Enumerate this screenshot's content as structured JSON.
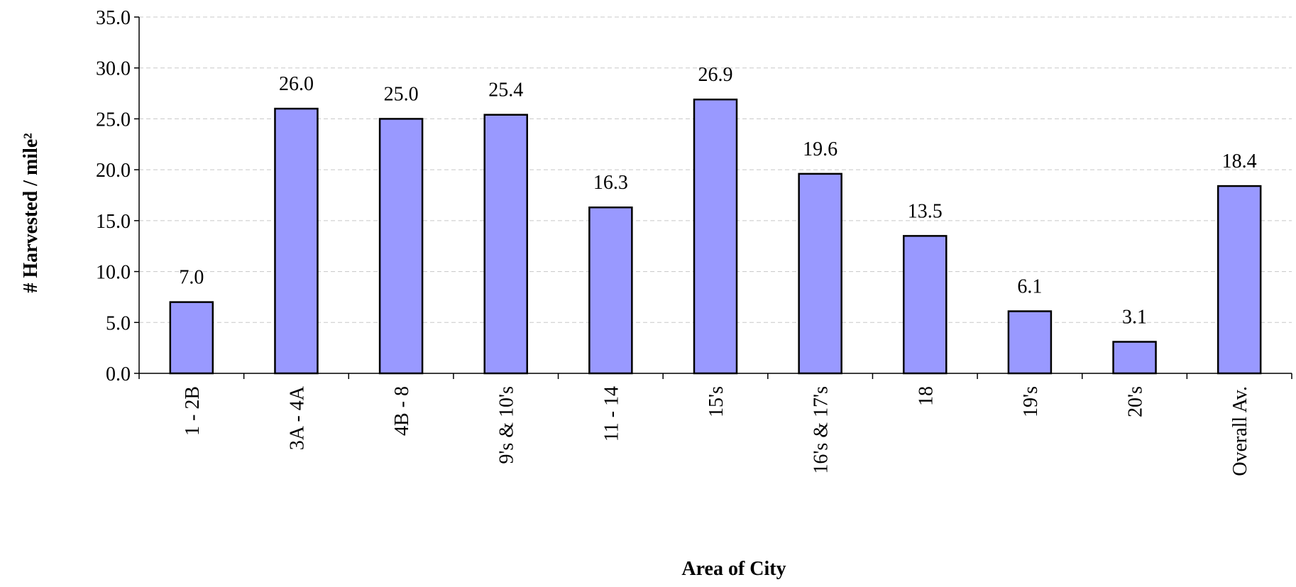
{
  "chart_data": {
    "type": "bar",
    "x_label": "Area of City",
    "y_label": "# Harvested / mile²",
    "categories": [
      "1 - 2B",
      "3A - 4A",
      "4B - 8",
      "9's & 10's",
      "11 - 14",
      "15's",
      "16's & 17's",
      "18",
      "19's",
      "20's",
      "Overall Av."
    ],
    "values": [
      7.0,
      26.0,
      25.0,
      25.4,
      16.3,
      26.9,
      19.6,
      13.5,
      6.1,
      3.1,
      18.4
    ],
    "value_labels": [
      "7.0",
      "26.0",
      "25.0",
      "25.4",
      "16.3",
      "26.9",
      "19.6",
      "13.5",
      "6.1",
      "3.1",
      "18.4"
    ],
    "color": "#9999ff",
    "ylim": [
      0,
      35
    ],
    "yticks": [
      {
        "value": 0,
        "label": "0.0"
      },
      {
        "value": 5,
        "label": "5.0"
      },
      {
        "value": 10,
        "label": "10.0"
      },
      {
        "value": 15,
        "label": "15.0"
      },
      {
        "value": 20,
        "label": "20.0"
      },
      {
        "value": 25,
        "label": "25.0"
      },
      {
        "value": 30,
        "label": "30.0"
      },
      {
        "value": 35,
        "label": "35.0"
      }
    ],
    "grid": true
  }
}
